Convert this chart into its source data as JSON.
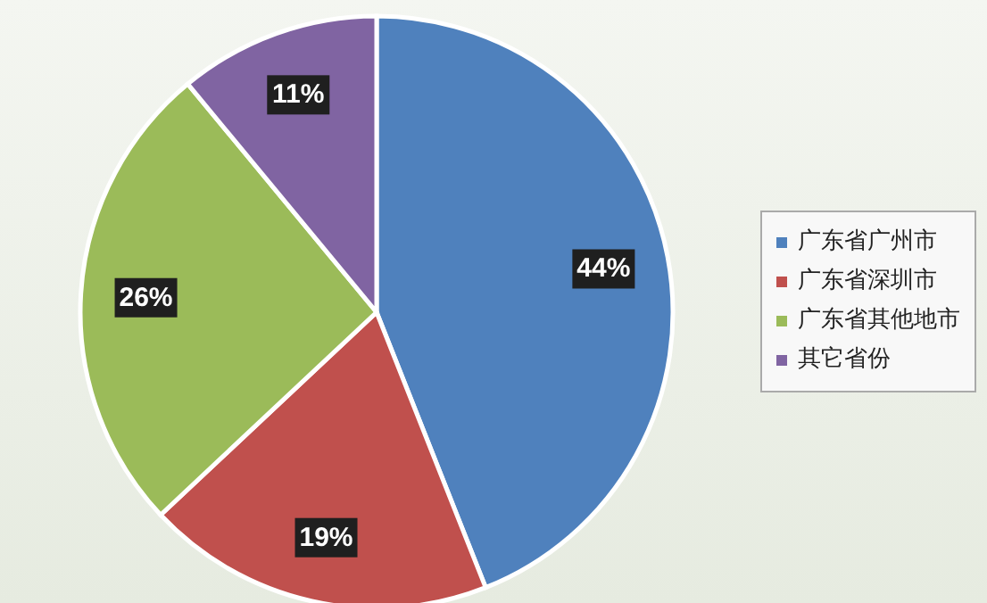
{
  "chart_data": {
    "type": "pie",
    "categories": [
      "广东省广州市",
      "广东省深圳市",
      "广东省其他地市",
      "其它省份"
    ],
    "values": [
      44,
      19,
      26,
      11
    ],
    "colors": [
      "#4f81bd",
      "#c0504d",
      "#9bbb59",
      "#8064a2"
    ],
    "value_labels": [
      "44%",
      "19%",
      "26%",
      "11%"
    ],
    "legend": "right"
  }
}
